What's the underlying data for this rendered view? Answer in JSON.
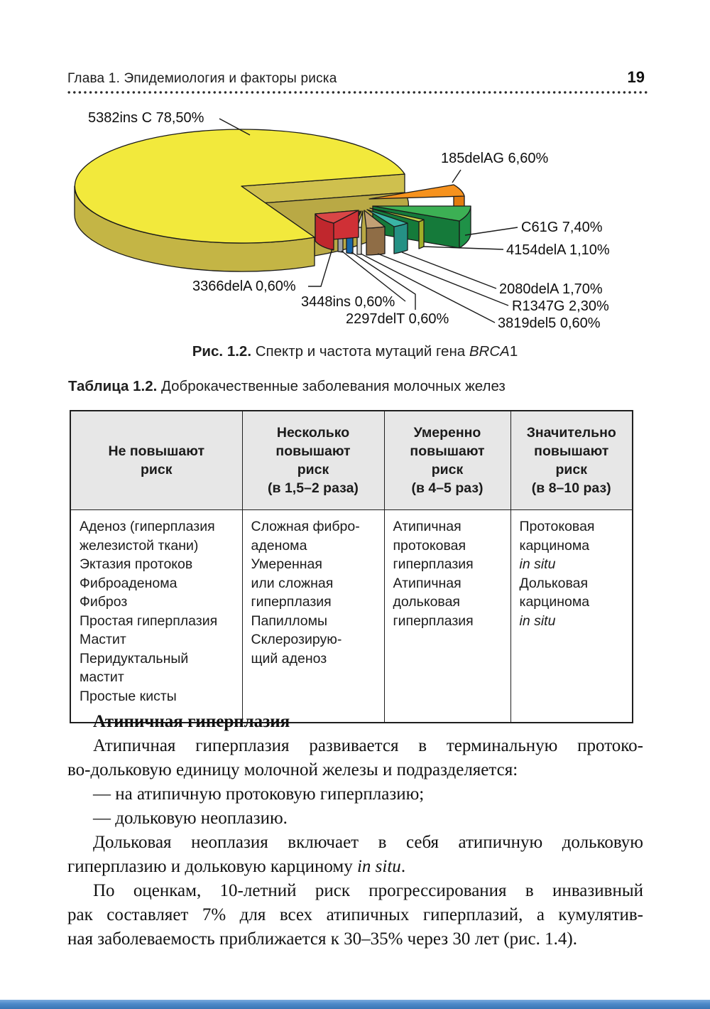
{
  "header": {
    "chapter_title": "Глава 1. Эпидемиология и факторы риска",
    "page_number": "19"
  },
  "figure_caption": {
    "label": "Рис. 1.2.",
    "text": " Спектр и частота мутаций гена ",
    "gene_italic": "BRCA",
    "suffix": "1"
  },
  "chart_data": {
    "type": "pie",
    "style": "3d-exploded",
    "title": "Спектр и частота мутаций гена BRCA1",
    "unit": "%",
    "labels": [
      "5382ins C",
      "185delAG",
      "C61G",
      "4154delA",
      "2080delA",
      "R1347G",
      "3819del5",
      "2297delT",
      "3448ins",
      "3366delA"
    ],
    "values": [
      78.5,
      6.6,
      7.4,
      1.1,
      1.7,
      2.3,
      0.6,
      0.6,
      0.6,
      0.6
    ],
    "display_labels": [
      "5382ins C 78,50%",
      "185delAG 6,60%",
      "C61G 7,40%",
      "4154delA 1,10%",
      "2080delA 1,70%",
      "R1347G 2,30%",
      "3819del5 0,60%",
      "2297delT 0,60%",
      "3448ins 0,60%",
      "3366delA 0,60%"
    ],
    "colors": [
      "#f2e93c",
      "#f6921e",
      "#3cb054",
      "#c3d046",
      "#3ab4a6",
      "#c2a074",
      "#f2f2f0",
      "#2b82c9",
      "#c9cbce",
      "#d94646"
    ],
    "legend_position": "callout-labels",
    "grid": false
  },
  "table": {
    "caption_label": "Таблица 1.2.",
    "caption_text": " Доброкачественные заболевания молочных желез",
    "header_bg": "#e7e7e7",
    "columns": [
      {
        "header_lines": [
          "Не повышают",
          "риск"
        ]
      },
      {
        "header_lines": [
          "Несколько",
          "повышают",
          "риск",
          "(в 1,5–2 раза)"
        ]
      },
      {
        "header_lines": [
          "Умеренно",
          "повышают",
          "риск",
          "(в 4–5 раз)"
        ]
      },
      {
        "header_lines": [
          "Значительно",
          "повышают",
          "риск",
          "(в 8–10 раз)"
        ]
      }
    ],
    "cells": [
      [
        "Аденоз (гиперплазия",
        "железистой ткани)",
        "Эктазия протоков",
        "Фиброаденома",
        "Фиброз",
        "Простая гиперплазия",
        "Мастит",
        "Перидуктальный",
        "мастит",
        "Простые кисты"
      ],
      [
        "Сложная фибро-",
        "аденома",
        "Умеренная",
        "или сложная",
        "гиперплазия",
        "Папилломы",
        "Склерозирую-",
        "щий аденоз"
      ],
      [
        "Атипичная",
        "протоковая",
        "гиперплазия",
        "Атипичная",
        "дольковая",
        "гиперплазия"
      ],
      [
        "Протоковая",
        "карцинома",
        {
          "text": "in situ",
          "italic": true
        },
        "Дольковая",
        "карцинома",
        {
          "text": "in situ",
          "italic": true
        }
      ]
    ]
  },
  "body": {
    "heading": "Атипичная гиперплазия",
    "p1_lines": [
      "Атипичная гиперплазия развивается в терминальную протоко-",
      "во-дольковую единицу молочной железы и подразделяется:"
    ],
    "bullets": [
      "— на атипичную протоковую гиперплазию;",
      "— дольковую неоплазию."
    ],
    "p2_line1": "Дольковая неоплазия включает в себя атипичную дольковую",
    "p2_line2_pre": "гиперплазию и дольковую карциному ",
    "p2_line2_italic": "in situ",
    "p2_line2_post": ".",
    "p3_lines": [
      "По оценкам, 10-летний риск прогрессирования в инвазивный",
      "рак составляет 7% для всех атипичных гиперплазий, а кумулятив-",
      "ная заболеваемость приближается к 30–35% через 30 лет (рис. 1.4)."
    ]
  },
  "footer": {
    "accent_color": "#4c89c9"
  }
}
